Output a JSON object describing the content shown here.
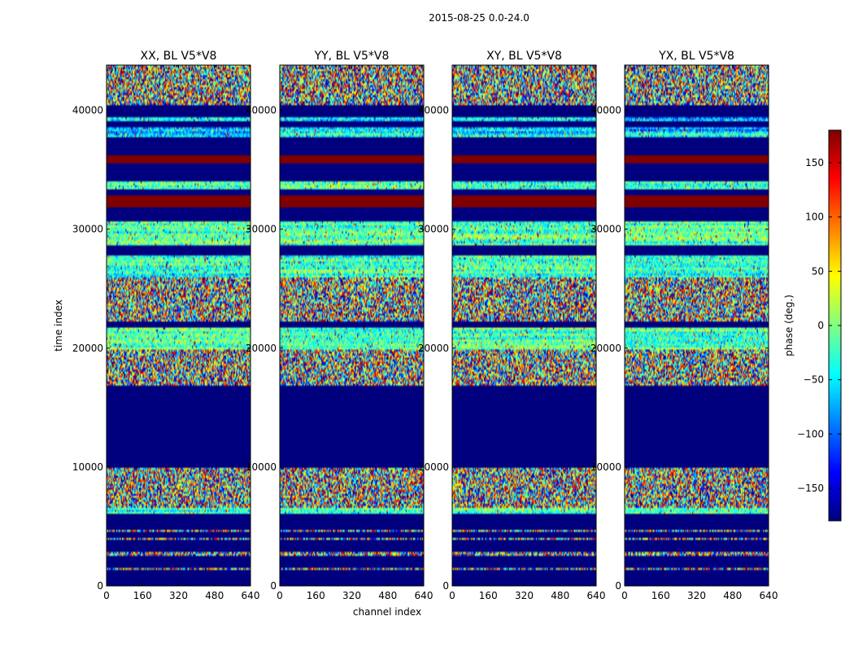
{
  "figure": {
    "suptitle": "2015-08-25 0.0-24.0"
  },
  "chart_data": {
    "type": "heatmap",
    "title": "2015-08-25 0.0-24.0",
    "xlabel": "channel index",
    "ylabel": "time index",
    "xlim": [
      0,
      640
    ],
    "ylim": [
      0,
      43800
    ],
    "xticks": [
      "0",
      "160",
      "320",
      "480",
      "640"
    ],
    "xtick_values": [
      0,
      160,
      320,
      480,
      640
    ],
    "yticks": [
      "0",
      "10000",
      "20000",
      "30000",
      "40000"
    ],
    "ytick_values": [
      0,
      10000,
      20000,
      30000,
      40000
    ],
    "colorbar": {
      "label": "phase (deg.)",
      "range": [
        -180,
        180
      ],
      "ticks": [
        "−150",
        "−100",
        "−50",
        "0",
        "50",
        "100",
        "150"
      ],
      "tick_values": [
        -150,
        -100,
        -50,
        0,
        50,
        100,
        150
      ],
      "colormap": "jet",
      "colors": [
        "#00007f",
        "#0000ff",
        "#0080ff",
        "#00ffff",
        "#80ff80",
        "#ffff00",
        "#ff8000",
        "#ff0000",
        "#7f0000"
      ]
    },
    "panels": [
      {
        "name": "XX",
        "title": "XX, BL V5*V8",
        "seed": 11
      },
      {
        "name": "YY",
        "title": "YY, BL V5*V8",
        "seed": 23
      },
      {
        "name": "XY",
        "title": "XY, BL V5*V8",
        "seed": 37
      },
      {
        "name": "YX",
        "title": "YX, BL V5*V8",
        "seed": 53
      }
    ],
    "bands": [
      {
        "from": 0,
        "to": 1400,
        "kind": "solid",
        "phase": -180
      },
      {
        "from": 1400,
        "to": 1550,
        "kind": "noisy"
      },
      {
        "from": 1550,
        "to": 2600,
        "kind": "solid",
        "phase": -180
      },
      {
        "from": 2600,
        "to": 2800,
        "kind": "noisy"
      },
      {
        "from": 2800,
        "to": 3900,
        "kind": "solid",
        "phase": -180
      },
      {
        "from": 3900,
        "to": 4050,
        "kind": "noisy"
      },
      {
        "from": 4050,
        "to": 4600,
        "kind": "solid",
        "phase": -180
      },
      {
        "from": 4600,
        "to": 4750,
        "kind": "noisy"
      },
      {
        "from": 4750,
        "to": 6100,
        "kind": "solid",
        "phase": -180
      },
      {
        "from": 6100,
        "to": 6600,
        "kind": "near",
        "phase": -20
      },
      {
        "from": 6600,
        "to": 9900,
        "kind": "noisy"
      },
      {
        "from": 9900,
        "to": 16900,
        "kind": "solid",
        "phase": -180
      },
      {
        "from": 16900,
        "to": 18200,
        "kind": "noisy"
      },
      {
        "from": 18200,
        "to": 19800,
        "kind": "noisy"
      },
      {
        "from": 19800,
        "to": 20200,
        "kind": "near",
        "phase": -10
      },
      {
        "from": 20200,
        "to": 21800,
        "kind": "near",
        "phase": -15
      },
      {
        "from": 21800,
        "to": 22200,
        "kind": "solid",
        "phase": -180
      },
      {
        "from": 22200,
        "to": 26000,
        "kind": "noisy"
      },
      {
        "from": 26000,
        "to": 27800,
        "kind": "near",
        "phase": -25
      },
      {
        "from": 27800,
        "to": 28700,
        "kind": "solid",
        "phase": -180
      },
      {
        "from": 28700,
        "to": 30700,
        "kind": "near",
        "phase": -15
      },
      {
        "from": 30700,
        "to": 31800,
        "kind": "solid",
        "phase": -180
      },
      {
        "from": 31800,
        "to": 32900,
        "kind": "solid",
        "phase": 180
      },
      {
        "from": 32900,
        "to": 33300,
        "kind": "solid",
        "phase": -180
      },
      {
        "from": 33300,
        "to": 34000,
        "kind": "near",
        "phase": -20
      },
      {
        "from": 34000,
        "to": 35500,
        "kind": "solid",
        "phase": -180
      },
      {
        "from": 35500,
        "to": 36300,
        "kind": "solid",
        "phase": 180
      },
      {
        "from": 36300,
        "to": 37700,
        "kind": "solid",
        "phase": -180
      },
      {
        "from": 37700,
        "to": 38000,
        "kind": "near",
        "phase": -40
      },
      {
        "from": 38000,
        "to": 38500,
        "kind": "near",
        "phase": -70
      },
      {
        "from": 38500,
        "to": 39000,
        "kind": "solid",
        "phase": -180
      },
      {
        "from": 39000,
        "to": 39400,
        "kind": "near",
        "phase": -60
      },
      {
        "from": 39400,
        "to": 40500,
        "kind": "solid",
        "phase": -180
      },
      {
        "from": 40500,
        "to": 41100,
        "kind": "noisy"
      },
      {
        "from": 41100,
        "to": 43800,
        "kind": "noisy"
      }
    ]
  }
}
